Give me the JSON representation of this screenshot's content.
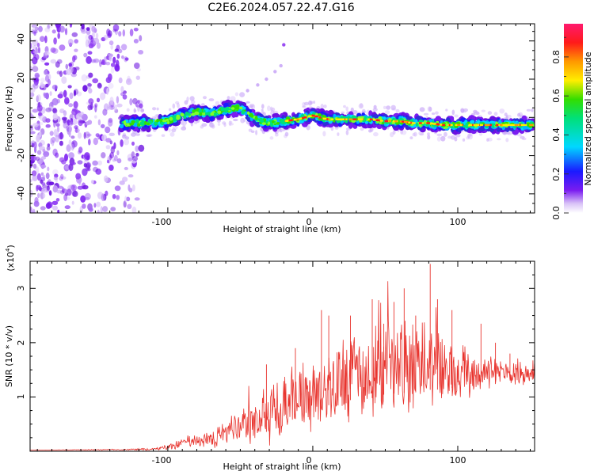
{
  "title": "C2E6.2024.057.22.47.G16",
  "colors": {
    "signal": "#e8342e",
    "scatter": "#7a1cf0",
    "background": "#ffffff"
  },
  "chart_data": [
    {
      "type": "heatmap",
      "name": "spectrogram",
      "xlabel": "Height of straight line (km)",
      "ylabel": "Frequency (Hz)",
      "xlim": [
        -195,
        153
      ],
      "ylim": [
        -50,
        49
      ],
      "xticks": [
        "-100",
        "0",
        "100"
      ],
      "yticks": [
        "40",
        "20",
        "0",
        "-20",
        "-40"
      ],
      "colorbar": {
        "label": "Normalized spectral amplitude",
        "range": [
          0,
          0.97
        ],
        "ticks": [
          "0.0",
          "0.2",
          "0.4",
          "0.6",
          "0.8"
        ]
      },
      "ridge": {
        "x": [
          -130,
          -120,
          -110,
          -100,
          -90,
          -80,
          -70,
          -60,
          -50,
          -40,
          -30,
          -20,
          -10,
          0,
          10,
          20,
          30,
          40,
          50,
          60,
          70,
          80,
          90,
          100,
          110,
          120,
          130,
          140,
          150
        ],
        "y": [
          -3,
          -3,
          -3,
          -2,
          1,
          3,
          2,
          4,
          5,
          -1,
          -3,
          -2,
          -1,
          1,
          -1,
          -1,
          -1,
          -1,
          -2,
          -2,
          -3,
          -3,
          -4,
          -4,
          -4,
          -4,
          -4,
          -4,
          -4
        ]
      },
      "faint_branch": {
        "x": [
          -45,
          -38,
          -32,
          -26,
          -22,
          -20
        ],
        "y": [
          14,
          17,
          20,
          24,
          27,
          38
        ]
      },
      "noise_region_x": [
        -195,
        -118
      ]
    },
    {
      "type": "line",
      "name": "snr",
      "xlabel": "Height of straight line (km)",
      "ylabel": "SNR (10 * v/v)",
      "scale_label": "(x10",
      "scale_exponent": "4",
      "scale_suffix": ")",
      "xlim": [
        -195,
        153
      ],
      "ylim": [
        0,
        3.5
      ],
      "xticks": [
        "-100",
        "0",
        "100"
      ],
      "yticks": [
        "3",
        "2",
        "1"
      ],
      "envelope": {
        "x": [
          -195,
          -130,
          -110,
          -100,
          -90,
          -80,
          -70,
          -60,
          -50,
          -40,
          -30,
          -20,
          -10,
          0,
          10,
          20,
          30,
          40,
          50,
          60,
          70,
          80,
          90,
          100,
          110,
          120,
          130,
          140,
          153
        ],
        "mean": [
          0.02,
          0.03,
          0.04,
          0.08,
          0.15,
          0.2,
          0.25,
          0.32,
          0.42,
          0.55,
          0.7,
          0.85,
          0.95,
          1.05,
          1.2,
          1.35,
          1.4,
          1.45,
          1.5,
          1.55,
          1.5,
          1.55,
          1.5,
          1.45,
          1.45,
          1.45,
          1.45,
          1.45,
          1.45
        ],
        "spread": [
          0.0,
          0.01,
          0.02,
          0.05,
          0.1,
          0.12,
          0.15,
          0.2,
          0.28,
          0.4,
          0.55,
          0.6,
          0.55,
          0.6,
          0.6,
          0.7,
          0.75,
          0.8,
          0.75,
          0.8,
          0.7,
          0.7,
          0.6,
          0.45,
          0.35,
          0.25,
          0.22,
          0.2,
          0.2
        ]
      },
      "spikes": {
        "x": [
          -32,
          -12,
          6,
          11,
          26,
          41,
          49,
          56,
          63,
          71,
          81,
          86,
          96,
          116,
          126,
          136
        ],
        "y": [
          1.6,
          1.9,
          2.6,
          2.5,
          2.5,
          2.8,
          2.35,
          2.75,
          3.0,
          2.5,
          3.45,
          2.8,
          2.6,
          2.35,
          2.0,
          1.8
        ]
      }
    }
  ]
}
